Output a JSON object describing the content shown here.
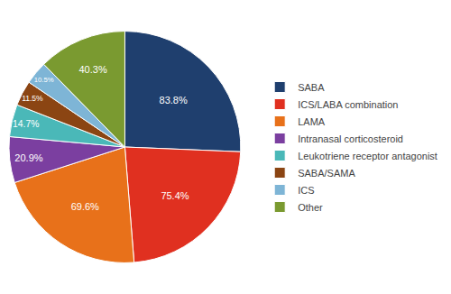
{
  "chart_data": {
    "type": "pie",
    "categories": [
      "SABA",
      "ICS/LABA combination",
      "LAMA",
      "Intranasal corticosteroid",
      "Leukotriene receptor antagonist",
      "SABA/SAMA",
      "ICS",
      "Other"
    ],
    "values": [
      83.8,
      75.4,
      69.6,
      20.9,
      14.7,
      11.5,
      10.5,
      40.3
    ],
    "value_labels": [
      "83.8%",
      "75.4%",
      "69.6%",
      "20.9%",
      "14.7%",
      "11.5%",
      "10.5%",
      "40.3%"
    ],
    "colors": [
      "#1f3f6e",
      "#e03020",
      "#e8711a",
      "#7b3fa0",
      "#4ab8b8",
      "#8b4513",
      "#7eb5d6",
      "#7a9a30"
    ],
    "data_labels": true,
    "legend": "right"
  }
}
